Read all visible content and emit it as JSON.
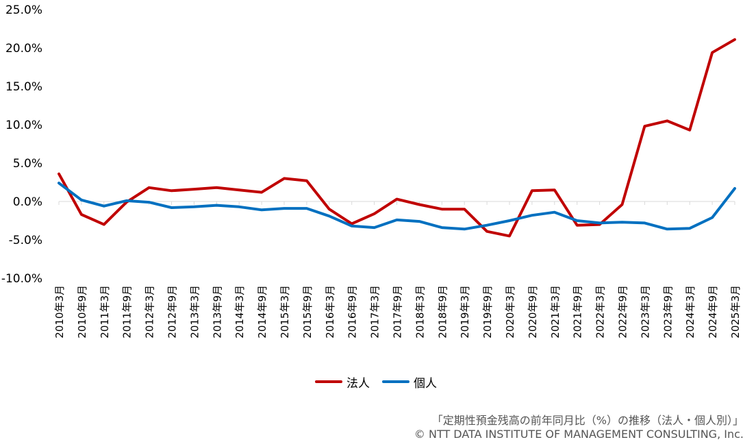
{
  "chart_data": {
    "type": "line",
    "categories": [
      "2010年3月",
      "2010年9月",
      "2011年3月",
      "2011年9月",
      "2012年3月",
      "2012年9月",
      "2013年3月",
      "2013年9月",
      "2014年3月",
      "2014年9月",
      "2015年3月",
      "2015年9月",
      "2016年3月",
      "2016年9月",
      "2017年3月",
      "2017年9月",
      "2018年3月",
      "2018年9月",
      "2019年3月",
      "2019年9月",
      "2020年3月",
      "2020年9月",
      "2021年3月",
      "2021年9月",
      "2022年3月",
      "2022年9月",
      "2023年3月",
      "2023年9月",
      "2024年3月",
      "2024年9月",
      "2025年3月"
    ],
    "series": [
      {
        "name": "法人",
        "color": "#c00000",
        "values": [
          3.6,
          -1.7,
          -3.0,
          -0.1,
          1.8,
          1.4,
          1.6,
          1.8,
          1.5,
          1.2,
          3.0,
          2.7,
          -1.0,
          -2.9,
          -1.6,
          0.3,
          -0.4,
          -1.0,
          -1.0,
          -3.9,
          -4.5,
          1.4,
          1.5,
          -3.1,
          -3.0,
          -0.4,
          9.8,
          10.5,
          9.3,
          19.4,
          21.1
        ]
      },
      {
        "name": "個人",
        "color": "#0070c0",
        "values": [
          2.4,
          0.2,
          -0.6,
          0.1,
          -0.1,
          -0.8,
          -0.7,
          -0.5,
          -0.7,
          -1.1,
          -0.9,
          -0.9,
          -1.9,
          -3.2,
          -3.4,
          -2.4,
          -2.6,
          -3.4,
          -3.6,
          -3.1,
          -2.5,
          -1.8,
          -1.4,
          -2.5,
          -2.8,
          -2.7,
          -2.8,
          -3.6,
          -3.5,
          -2.1,
          1.7
        ]
      }
    ],
    "ylim": [
      -10,
      25
    ],
    "yticks": [
      "-10.0%",
      "-5.0%",
      "0.0%",
      "5.0%",
      "10.0%",
      "15.0%",
      "20.0%",
      "25.0%"
    ],
    "ytick_values": [
      -10,
      -5,
      0,
      5,
      10,
      15,
      20,
      25
    ],
    "grid": false,
    "legend_position": "bottom"
  },
  "caption": {
    "title": "「定期性預金残高の前年同月比（%）の推移（法人・個人別）」",
    "credit": "© NTT DATA INSTITUTE OF MANAGEMENT CONSULTING, Inc."
  }
}
